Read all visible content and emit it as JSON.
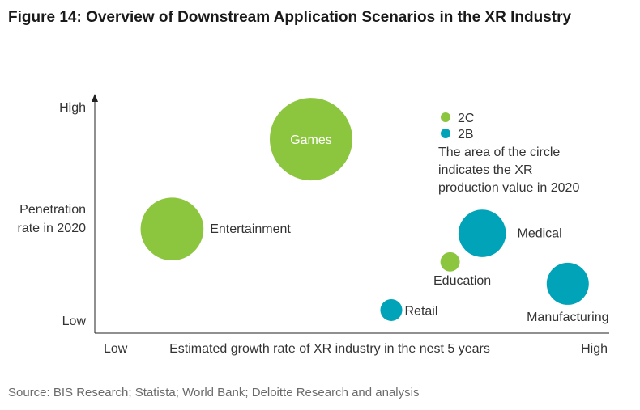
{
  "figure_title": "Figure 14: Overview of Downstream Application Scenarios in the XR Industry",
  "source": "Source: BIS Research; Statista; World Bank; Deloitte Research and analysis",
  "colors": {
    "2C": "#8cc63f",
    "2B": "#00a3b8"
  },
  "chart_data": {
    "type": "scatter",
    "title": "Figure 14: Overview of Downstream Application Scenarios in the XR Industry",
    "xlabel": "Estimated growth rate of XR industry in the nest 5 years",
    "ylabel": "Penetration rate in 2020",
    "ylabel_lines": [
      "Penetration",
      "rate in 2020"
    ],
    "x_ticks": [
      "Low",
      "High"
    ],
    "y_ticks": [
      "High",
      "Low"
    ],
    "legend": [
      {
        "name": "2C",
        "color": "#8cc63f"
      },
      {
        "name": "2B",
        "color": "#00a3b8"
      }
    ],
    "legend_position": "top-right",
    "note": [
      "The area of the circle",
      "indicates the XR",
      "production value in 2020"
    ],
    "grid": false,
    "xlim": [
      0,
      100
    ],
    "ylim": [
      0,
      100
    ],
    "points": [
      {
        "label": "Games",
        "group": "2C",
        "x": 40,
        "y": 83,
        "size": 100
      },
      {
        "label": "Entertainment",
        "group": "2C",
        "x": 14,
        "y": 42,
        "size": 58
      },
      {
        "label": "Medical",
        "group": "2B",
        "x": 72,
        "y": 40,
        "size": 33
      },
      {
        "label": "Education",
        "group": "2C",
        "x": 66,
        "y": 27,
        "size": 5.5
      },
      {
        "label": "Retail",
        "group": "2B",
        "x": 55,
        "y": 5,
        "size": 7
      },
      {
        "label": "Manufacturing",
        "group": "2B",
        "x": 88,
        "y": 17,
        "size": 26
      }
    ]
  }
}
